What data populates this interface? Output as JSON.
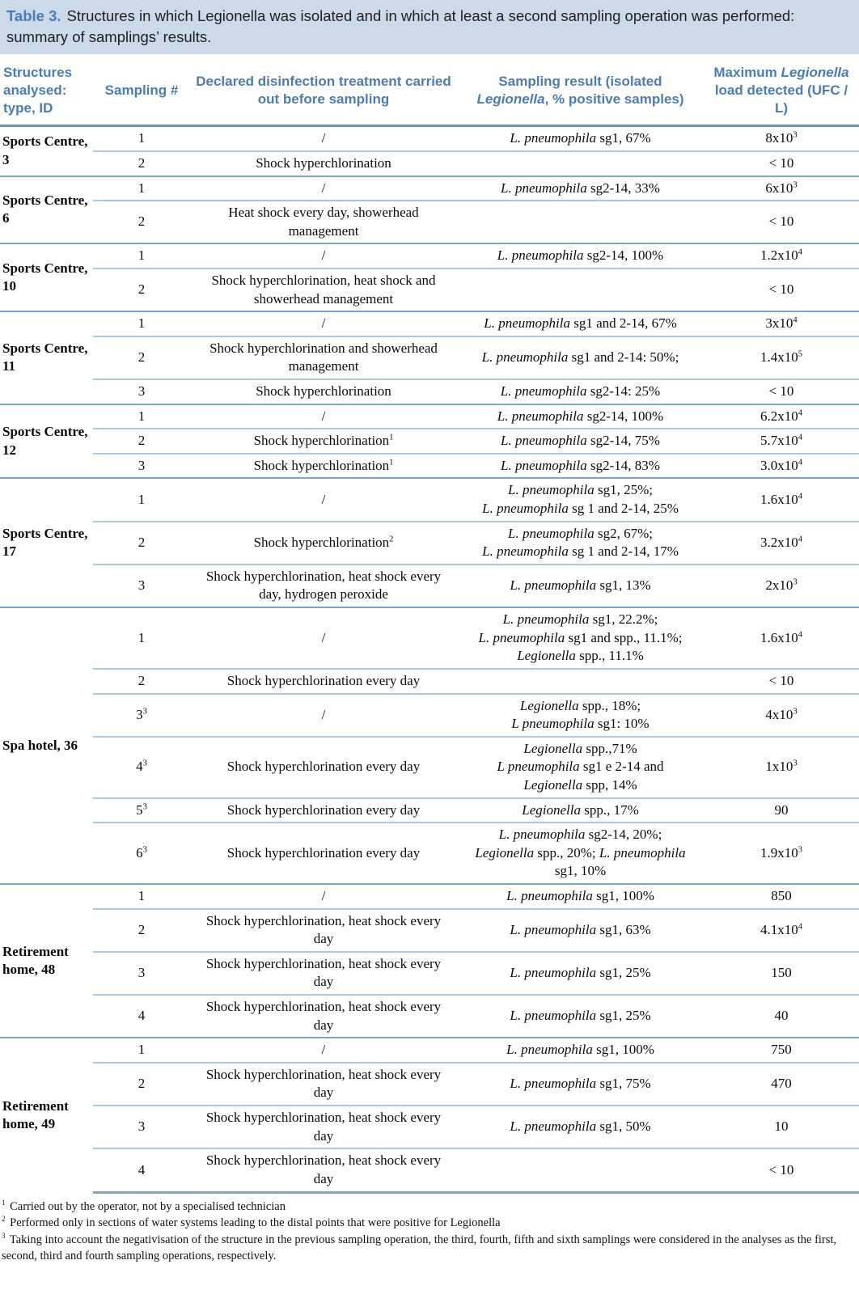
{
  "title": {
    "label": "Table 3.",
    "text": "Structures in which Legionella was isolated and in which at least a second sampling operation was performed: summary of samplings’ results."
  },
  "colors": {
    "title_band_bg": "#ccd9e9",
    "heading_blue": "#4a7db4",
    "group_separator_line": "#7fa5cd",
    "row_separator_line": "#abc8e4",
    "header_underline": "#6b93be"
  },
  "table": {
    "columns": [
      {
        "key": "structures",
        "segments": [
          {
            "t": "Structures analysed: type, ID"
          }
        ]
      },
      {
        "key": "sampling",
        "segments": [
          {
            "t": "Sampling #"
          }
        ]
      },
      {
        "key": "treatment",
        "segments": [
          {
            "t": "Declared disinfection treatment carried out before sampling"
          }
        ]
      },
      {
        "key": "result",
        "segments": [
          {
            "t": "Sampling result (isolated "
          },
          {
            "t": "Legionella",
            "i": true
          },
          {
            "t": ", % positive samples)"
          }
        ]
      },
      {
        "key": "load",
        "segments": [
          {
            "t": "Maximum "
          },
          {
            "t": "Legionella",
            "i": true
          },
          {
            "t": " load detected (UFC / L)"
          }
        ]
      }
    ],
    "groups": [
      {
        "structure": "Sports Centre, 3",
        "rows": [
          {
            "sampling": {
              "t": "1"
            },
            "treatment": {
              "t": "/"
            },
            "result": [
              [
                {
                  "t": "L. pneumophila",
                  "i": true
                },
                {
                  "t": " sg1, 67%"
                }
              ]
            ],
            "load": {
              "t": "8x10",
              "sup": "3"
            }
          },
          {
            "sampling": {
              "t": "2"
            },
            "treatment": {
              "t": "Shock hyperchlorination"
            },
            "result": [],
            "load": {
              "t": "< 10"
            }
          }
        ]
      },
      {
        "structure": "Sports Centre, 6",
        "rows": [
          {
            "sampling": {
              "t": "1"
            },
            "treatment": {
              "t": "/"
            },
            "result": [
              [
                {
                  "t": "L. pneumophila",
                  "i": true
                },
                {
                  "t": " sg2-14, 33%"
                }
              ]
            ],
            "load": {
              "t": "6x10",
              "sup": "3"
            }
          },
          {
            "sampling": {
              "t": "2"
            },
            "treatment": {
              "t": "Heat shock every day, showerhead management"
            },
            "result": [],
            "load": {
              "t": "< 10"
            }
          }
        ]
      },
      {
        "structure": "Sports Centre, 10",
        "rows": [
          {
            "sampling": {
              "t": "1"
            },
            "treatment": {
              "t": "/"
            },
            "result": [
              [
                {
                  "t": "L. pneumophila",
                  "i": true
                },
                {
                  "t": " sg2-14, 100%"
                }
              ]
            ],
            "load": {
              "t": "1.2x10",
              "sup": "4"
            }
          },
          {
            "sampling": {
              "t": "2"
            },
            "treatment": {
              "t": "Shock hyperchlorination, heat shock and showerhead management"
            },
            "result": [],
            "load": {
              "t": "< 10"
            }
          }
        ]
      },
      {
        "structure": "Sports Centre, 11",
        "rows": [
          {
            "sampling": {
              "t": "1"
            },
            "treatment": {
              "t": "/"
            },
            "result": [
              [
                {
                  "t": "L. pneumophila",
                  "i": true
                },
                {
                  "t": " sg1 and 2-14, 67%"
                }
              ]
            ],
            "load": {
              "t": "3x10",
              "sup": "4"
            }
          },
          {
            "sampling": {
              "t": "2"
            },
            "treatment": {
              "t": "Shock hyperchlorination and showerhead management"
            },
            "result": [
              [
                {
                  "t": "L. pneumophila",
                  "i": true
                },
                {
                  "t": " sg1 and 2-14: 50%;"
                }
              ]
            ],
            "load": {
              "t": "1.4x10",
              "sup": "5"
            }
          },
          {
            "sampling": {
              "t": "3"
            },
            "treatment": {
              "t": "Shock hyperchlorination"
            },
            "result": [
              [
                {
                  "t": "L. pneumophila",
                  "i": true
                },
                {
                  "t": " sg2-14: 25%"
                }
              ]
            ],
            "load": {
              "t": "< 10"
            }
          }
        ]
      },
      {
        "structure": "Sports Centre, 12",
        "rows": [
          {
            "sampling": {
              "t": "1"
            },
            "treatment": {
              "t": "/"
            },
            "result": [
              [
                {
                  "t": "L. pneumophila",
                  "i": true
                },
                {
                  "t": " sg2-14, 100%"
                }
              ]
            ],
            "load": {
              "t": "6.2x10",
              "sup": "4"
            }
          },
          {
            "sampling": {
              "t": "2"
            },
            "treatment": {
              "t": "Shock hyperchlorination",
              "sup": "1"
            },
            "result": [
              [
                {
                  "t": "L. pneumophila",
                  "i": true
                },
                {
                  "t": " sg2-14, 75%"
                }
              ]
            ],
            "load": {
              "t": "5.7x10",
              "sup": "4"
            }
          },
          {
            "sampling": {
              "t": "3"
            },
            "treatment": {
              "t": "Shock hyperchlorination",
              "sup": "1"
            },
            "result": [
              [
                {
                  "t": "L. pneumophila",
                  "i": true
                },
                {
                  "t": " sg2-14, 83%"
                }
              ]
            ],
            "load": {
              "t": "3.0x10",
              "sup": "4"
            }
          }
        ]
      },
      {
        "structure": "Sports Centre, 17",
        "rows": [
          {
            "sampling": {
              "t": "1"
            },
            "treatment": {
              "t": "/"
            },
            "result": [
              [
                {
                  "t": "L. pneumophila",
                  "i": true
                },
                {
                  "t": " sg1, 25%;"
                }
              ],
              [
                {
                  "t": "L. pneumophila",
                  "i": true
                },
                {
                  "t": " sg 1 and 2-14, 25%"
                }
              ]
            ],
            "load": {
              "t": "1.6x10",
              "sup": "4"
            }
          },
          {
            "sampling": {
              "t": "2"
            },
            "treatment": {
              "t": "Shock hyperchlorination",
              "sup": "2"
            },
            "result": [
              [
                {
                  "t": "L. pneumophila",
                  "i": true
                },
                {
                  "t": " sg2, 67%;"
                }
              ],
              [
                {
                  "t": "L. pneumophila",
                  "i": true
                },
                {
                  "t": " sg 1 and 2-14, 17%"
                }
              ]
            ],
            "load": {
              "t": "3.2x10",
              "sup": "4"
            }
          },
          {
            "sampling": {
              "t": "3"
            },
            "treatment": {
              "t": "Shock hyperchlorination, heat shock every day, hydrogen peroxide"
            },
            "result": [
              [
                {
                  "t": "L. pneumophila",
                  "i": true
                },
                {
                  "t": " sg1, 13%"
                }
              ]
            ],
            "load": {
              "t": "2x10",
              "sup": "3"
            }
          }
        ]
      },
      {
        "structure": "Spa hotel, 36",
        "rows": [
          {
            "sampling": {
              "t": "1"
            },
            "treatment": {
              "t": "/"
            },
            "result": [
              [
                {
                  "t": "L. pneumophila",
                  "i": true
                },
                {
                  "t": " sg1, 22.2%;"
                }
              ],
              [
                {
                  "t": "L. pneumophila",
                  "i": true
                },
                {
                  "t": " sg1 and spp., 11.1%;"
                }
              ],
              [
                {
                  "t": "Legionella",
                  "i": true
                },
                {
                  "t": " spp., 11.1%"
                }
              ]
            ],
            "load": {
              "t": "1.6x10",
              "sup": "4"
            }
          },
          {
            "sampling": {
              "t": "2"
            },
            "treatment": {
              "t": "Shock hyperchlorination every day"
            },
            "result": [],
            "load": {
              "t": "< 10"
            }
          },
          {
            "sampling": {
              "t": "3",
              "sup": "3"
            },
            "treatment": {
              "t": "/"
            },
            "result": [
              [
                {
                  "t": "Legionella",
                  "i": true
                },
                {
                  "t": " spp., 18%;"
                }
              ],
              [
                {
                  "t": "L pneumophila",
                  "i": true
                },
                {
                  "t": " sg1: 10%"
                }
              ]
            ],
            "load": {
              "t": "4x10",
              "sup": "3"
            }
          },
          {
            "sampling": {
              "t": "4",
              "sup": "3"
            },
            "treatment": {
              "t": "Shock hyperchlorination every day"
            },
            "result": [
              [
                {
                  "t": "Legionella",
                  "i": true
                },
                {
                  "t": " spp.,71%"
                }
              ],
              [
                {
                  "t": "L pneumophila",
                  "i": true
                },
                {
                  "t": " sg1 e 2-14 and"
                }
              ],
              [
                {
                  "t": "Legionella",
                  "i": true
                },
                {
                  "t": " spp, 14%"
                }
              ]
            ],
            "load": {
              "t": "1x10",
              "sup": "3"
            }
          },
          {
            "sampling": {
              "t": "5",
              "sup": "3"
            },
            "treatment": {
              "t": "Shock hyperchlorination every day"
            },
            "result": [
              [
                {
                  "t": "Legionella",
                  "i": true
                },
                {
                  "t": " spp., 17%"
                }
              ]
            ],
            "load": {
              "t": "90"
            }
          },
          {
            "sampling": {
              "t": "6",
              "sup": "3"
            },
            "treatment": {
              "t": "Shock hyperchlorination every day"
            },
            "result": [
              [
                {
                  "t": "L. pneumophila",
                  "i": true
                },
                {
                  "t": " sg2-14, 20%;"
                }
              ],
              [
                {
                  "t": "Legionella",
                  "i": true
                },
                {
                  "t": " spp., 20%; "
                },
                {
                  "t": "L. pneumophila",
                  "i": true
                }
              ],
              [
                {
                  "t": "sg1, 10%"
                }
              ]
            ],
            "load": {
              "t": "1.9x10",
              "sup": "3"
            }
          }
        ]
      },
      {
        "structure": "Retirement home, 48",
        "rows": [
          {
            "sampling": {
              "t": "1"
            },
            "treatment": {
              "t": "/"
            },
            "result": [
              [
                {
                  "t": "L. pneumophila",
                  "i": true
                },
                {
                  "t": " sg1, 100%"
                }
              ]
            ],
            "load": {
              "t": "850"
            }
          },
          {
            "sampling": {
              "t": "2"
            },
            "treatment": {
              "t": "Shock hyperchlorination, heat shock every day"
            },
            "result": [
              [
                {
                  "t": "L. pneumophila",
                  "i": true
                },
                {
                  "t": " sg1, 63%"
                }
              ]
            ],
            "load": {
              "t": "4.1x10",
              "sup": "4"
            }
          },
          {
            "sampling": {
              "t": "3"
            },
            "treatment": {
              "t": "Shock hyperchlorination, heat shock every day"
            },
            "result": [
              [
                {
                  "t": "L. pneumophila",
                  "i": true
                },
                {
                  "t": " sg1, 25%"
                }
              ]
            ],
            "load": {
              "t": "150"
            }
          },
          {
            "sampling": {
              "t": "4"
            },
            "treatment": {
              "t": "Shock hyperchlorination, heat shock every day"
            },
            "result": [
              [
                {
                  "t": "L. pneumophila",
                  "i": true
                },
                {
                  "t": " sg1, 25%"
                }
              ]
            ],
            "load": {
              "t": "40"
            }
          }
        ]
      },
      {
        "structure": "Retirement home, 49",
        "rows": [
          {
            "sampling": {
              "t": "1"
            },
            "treatment": {
              "t": "/"
            },
            "result": [
              [
                {
                  "t": "L. pneumophila",
                  "i": true
                },
                {
                  "t": " sg1, 100%"
                }
              ]
            ],
            "load": {
              "t": "750"
            }
          },
          {
            "sampling": {
              "t": "2"
            },
            "treatment": {
              "t": "Shock hyperchlorination, heat shock every day"
            },
            "result": [
              [
                {
                  "t": "L. pneumophila",
                  "i": true
                },
                {
                  "t": " sg1, 75%"
                }
              ]
            ],
            "load": {
              "t": "470"
            }
          },
          {
            "sampling": {
              "t": "3"
            },
            "treatment": {
              "t": "Shock hyperchlorination, heat shock every day"
            },
            "result": [
              [
                {
                  "t": "L. pneumophila",
                  "i": true
                },
                {
                  "t": " sg1, 50%"
                }
              ]
            ],
            "load": {
              "t": "10"
            }
          },
          {
            "sampling": {
              "t": "4"
            },
            "treatment": {
              "t": "Shock hyperchlorination, heat shock every day"
            },
            "result": [],
            "load": {
              "t": "< 10"
            }
          }
        ]
      }
    ]
  },
  "footnotes": [
    {
      "sup": "1",
      "text": "Carried out by the operator, not by a specialised technician"
    },
    {
      "sup": "2",
      "text": "Performed only in sections of water systems leading to the distal points that were positive for Legionella"
    },
    {
      "sup": "3",
      "text": "Taking into account the negativisation of the structure in the previous sampling operation, the third, fourth, fifth and sixth samplings were considered in the analyses as the first, second, third and fourth sampling operations, respectively."
    }
  ]
}
